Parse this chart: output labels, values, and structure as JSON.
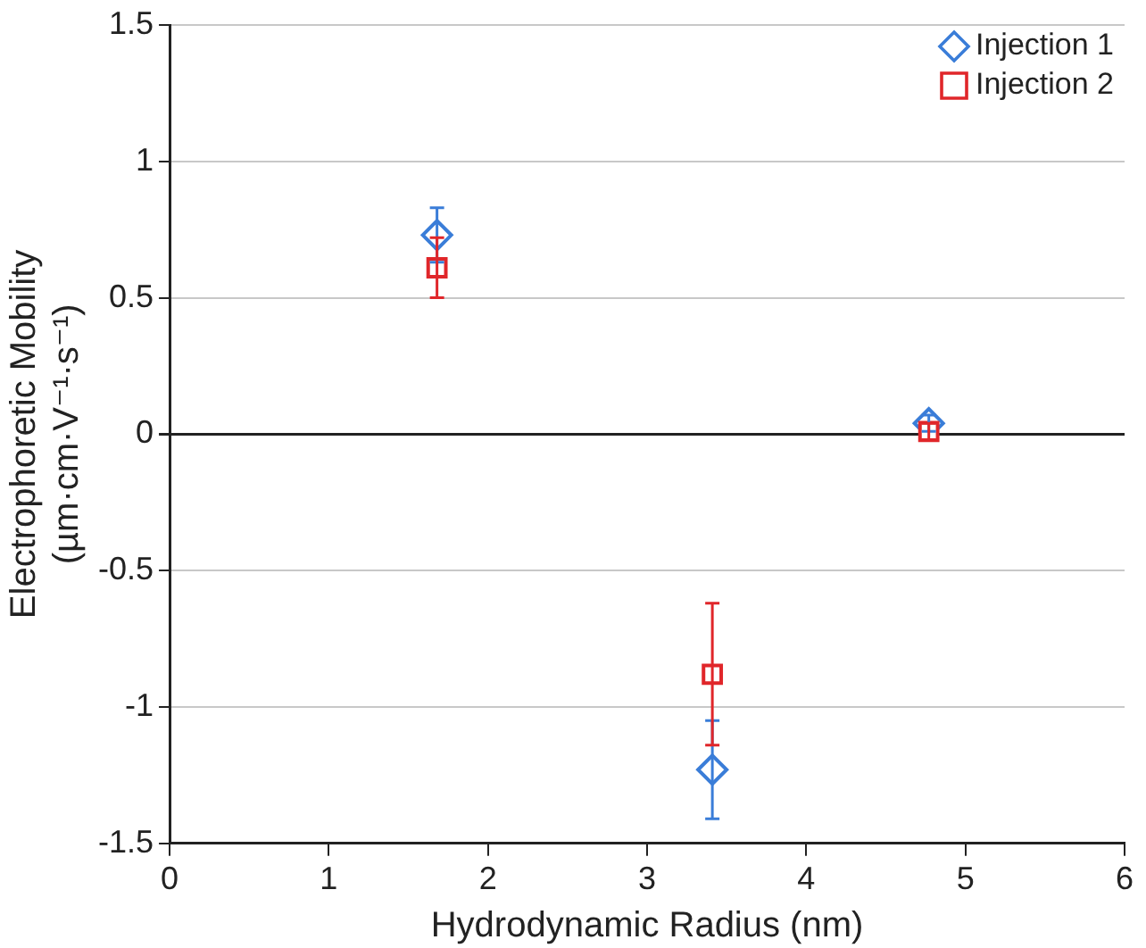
{
  "chart_data": {
    "type": "scatter",
    "xlabel": "Hydrodynamic Radius (nm)",
    "ylabel": "Electrophoretic Mobility\n(µm·cm·V⁻¹·s⁻¹)",
    "xlim": [
      0,
      6
    ],
    "xticks": [
      0,
      1,
      2,
      3,
      4,
      5,
      6
    ],
    "ylim": [
      -1.5,
      1.5
    ],
    "yticks": [
      -1.5,
      -1,
      -0.5,
      0,
      0.5,
      1,
      1.5
    ],
    "grid": "y",
    "legend": "top right",
    "series": [
      {
        "name": "Injection 1",
        "color": "#3a7dd8",
        "marker": "diamond",
        "x": [
          1.68,
          3.41,
          4.77
        ],
        "values": [
          0.73,
          -1.23,
          0.04
        ],
        "errors": [
          0.1,
          0.18,
          0.03
        ]
      },
      {
        "name": "Injection 2",
        "color": "#e0262a",
        "marker": "square",
        "x": [
          1.68,
          3.41,
          4.77
        ],
        "values": [
          0.61,
          -0.88,
          0.01
        ],
        "errors": [
          0.11,
          0.26,
          0.03
        ]
      }
    ]
  }
}
